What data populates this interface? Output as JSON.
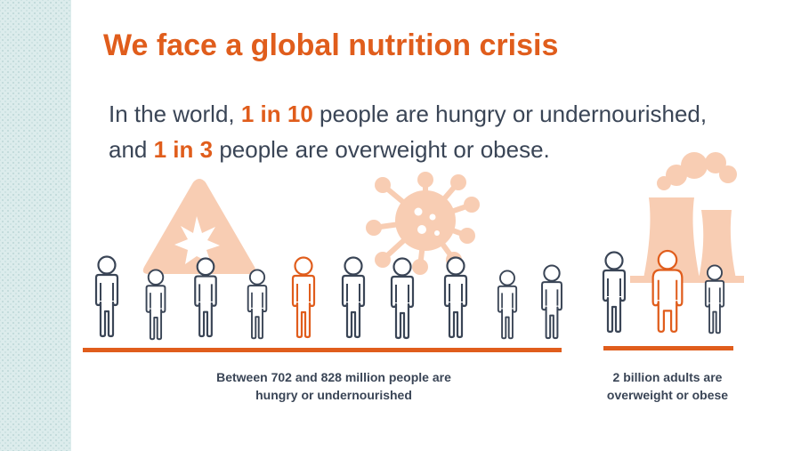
{
  "title": "We face a global nutrition crisis",
  "subtitle": {
    "line1_prefix": "In the world, ",
    "line1_highlight": "1 in 10",
    "line1_suffix": " people are hungry or undernourished,",
    "line2_prefix": "and ",
    "line2_highlight": "1 in 3",
    "line2_suffix": " people are overweight or obese."
  },
  "captions": {
    "hungry": "Between 702 and 828 million people are hungry or undernourished",
    "overweight": "2 billion adults are overweight or obese"
  },
  "colors": {
    "accent": "#e05d1c",
    "text": "#3a4556",
    "faded_icon": "#f6c8ad",
    "strip": "#dcecec"
  },
  "icons": [
    "warning-explosion-icon",
    "virus-icon",
    "factory-smoke-icon",
    "person-icon"
  ]
}
